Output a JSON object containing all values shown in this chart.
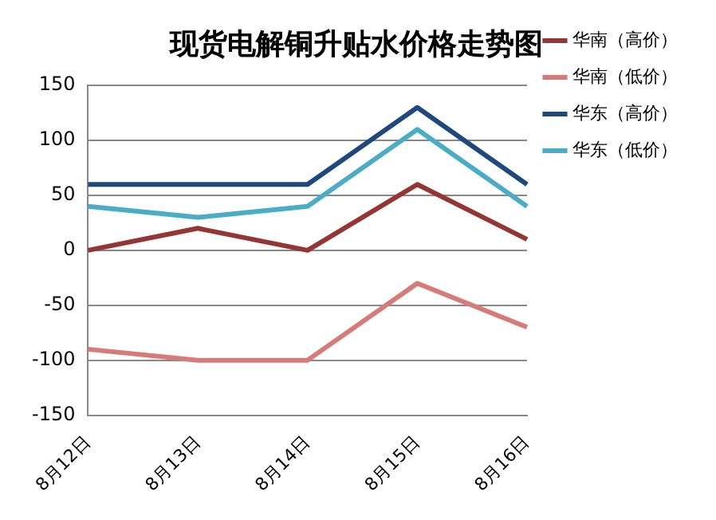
{
  "chart_data": {
    "type": "line",
    "title": "现货电解铜升贴水价格走势图",
    "categories": [
      "8月12日",
      "8月13日",
      "8月14日",
      "8月15日",
      "8月16日"
    ],
    "series": [
      {
        "name": "华南（高价）",
        "color": "#943634",
        "values": [
          0,
          20,
          0,
          60,
          10
        ]
      },
      {
        "name": "华南（低价）",
        "color": "#d77b78",
        "values": [
          -90,
          -100,
          -100,
          -30,
          -70
        ]
      },
      {
        "name": "华东（高价）",
        "color": "#1f497d",
        "values": [
          60,
          60,
          60,
          130,
          60
        ]
      },
      {
        "name": "华东（低价）",
        "color": "#4bacc6",
        "values": [
          40,
          30,
          40,
          110,
          40
        ]
      }
    ],
    "ylim": [
      -150,
      150
    ],
    "yticks": [
      -150,
      -100,
      -50,
      0,
      50,
      100,
      150
    ],
    "grid": "y",
    "legend": "right",
    "marker": "none",
    "line_style": "solid"
  }
}
